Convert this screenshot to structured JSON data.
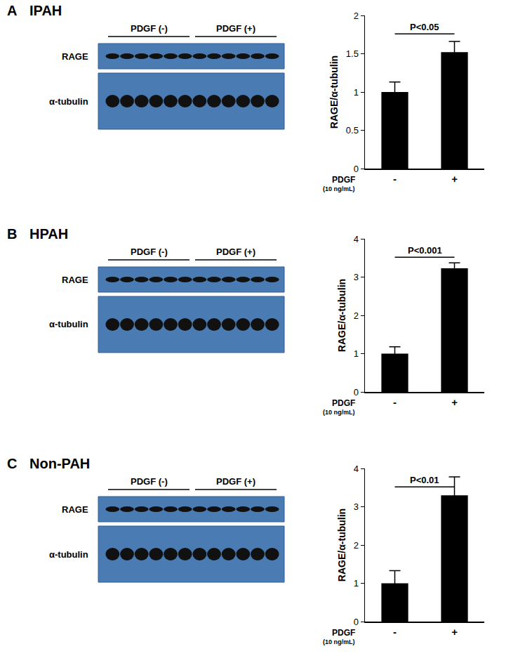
{
  "chart_data": [
    {
      "type": "bar",
      "panel": "A",
      "title": "IPAH",
      "blot": {
        "rows": [
          "RAGE",
          "α-tubulin"
        ],
        "groups": [
          "PDGF (-)",
          "PDGF (+)"
        ],
        "lanes_per_group": 6
      },
      "categories": [
        "-",
        "+"
      ],
      "values": [
        1.0,
        1.52
      ],
      "errors": [
        0.13,
        0.14
      ],
      "color": "#000000",
      "y_label": "RAGE/α-tubulin",
      "x_label": "PDGF",
      "x_sublabel": "(10 ng/mL)",
      "ylim": [
        0,
        2
      ],
      "yticks": [
        0,
        0.5,
        1,
        1.5,
        2
      ],
      "grid": false,
      "annotations": [
        "P<0.05"
      ]
    },
    {
      "type": "bar",
      "panel": "B",
      "title": "HPAH",
      "blot": {
        "rows": [
          "RAGE",
          "α-tubulin"
        ],
        "groups": [
          "PDGF (-)",
          "PDGF (+)"
        ],
        "lanes_per_group": 6
      },
      "categories": [
        "-",
        "+"
      ],
      "values": [
        1.0,
        3.23
      ],
      "errors": [
        0.18,
        0.14
      ],
      "color": "#000000",
      "y_label": "RAGE/α-tubulin",
      "x_label": "PDGF",
      "x_sublabel": "(10 ng/mL)",
      "ylim": [
        0,
        4
      ],
      "yticks": [
        0,
        1,
        2,
        3,
        4
      ],
      "grid": false,
      "annotations": [
        "P<0.001"
      ]
    },
    {
      "type": "bar",
      "panel": "C",
      "title": "Non-PAH",
      "blot": {
        "rows": [
          "RAGE",
          "α-tubulin"
        ],
        "groups": [
          "PDGF (-)",
          "PDGF (+)"
        ],
        "lanes_per_group": 6
      },
      "categories": [
        "-",
        "+"
      ],
      "values": [
        1.0,
        3.3
      ],
      "errors": [
        0.33,
        0.48
      ],
      "color": "#000000",
      "y_label": "RAGE/α-tubulin",
      "x_label": "PDGF",
      "x_sublabel": "(10 ng/mL)",
      "ylim": [
        0,
        4
      ],
      "yticks": [
        0,
        1,
        2,
        3,
        4
      ],
      "grid": false,
      "annotations": [
        "P<0.01"
      ]
    }
  ]
}
